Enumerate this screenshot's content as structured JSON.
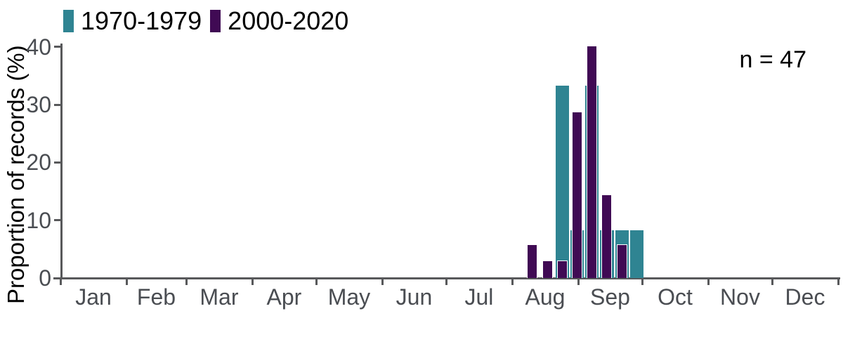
{
  "chart_data": {
    "type": "bar",
    "title": "",
    "ylabel": "Proportion of records (%)",
    "xlabel": "",
    "annotation": "n = 47",
    "ylim": [
      0,
      40
    ],
    "yticks": [
      0,
      10,
      20,
      30,
      40
    ],
    "month_labels": [
      "Jan",
      "Feb",
      "Mar",
      "Apr",
      "May",
      "Jun",
      "Jul",
      "Aug",
      "Sep",
      "Oct",
      "Nov",
      "Dec"
    ],
    "month_start_days": [
      1,
      32,
      60,
      91,
      121,
      152,
      182,
      213,
      244,
      274,
      305,
      335,
      366
    ],
    "bin_width_days": 7,
    "grid": false,
    "legend_position": "top-left",
    "colors": {
      "background": "#FFFFFF",
      "axis": "#58595B",
      "tick_label": "#4A4D52",
      "text": "#000000",
      "series_1970": "#2F8492",
      "series_2000": "#400A54"
    },
    "series": [
      {
        "name": "1970-1979",
        "color": "#2F8492",
        "bar_style": "full",
        "bins": [
          {
            "start_day": 233,
            "start_date": "Aug 21",
            "value": 33.3
          },
          {
            "start_day": 240,
            "start_date": "Aug 28",
            "value": 8.3
          },
          {
            "start_day": 247,
            "start_date": "Sep 4",
            "value": 33.3
          },
          {
            "start_day": 254,
            "start_date": "Sep 11",
            "value": 8.3
          },
          {
            "start_day": 261,
            "start_date": "Sep 18",
            "value": 8.3
          },
          {
            "start_day": 268,
            "start_date": "Sep 25",
            "value": 8.3
          }
        ]
      },
      {
        "name": "2000-2020",
        "color": "#400A54",
        "bar_style": "narrow",
        "bins": [
          {
            "start_day": 219,
            "start_date": "Aug 7",
            "value": 5.7
          },
          {
            "start_day": 226,
            "start_date": "Aug 14",
            "value": 2.9
          },
          {
            "start_day": 233,
            "start_date": "Aug 21",
            "value": 2.9
          },
          {
            "start_day": 240,
            "start_date": "Aug 28",
            "value": 28.6
          },
          {
            "start_day": 247,
            "start_date": "Sep 4",
            "value": 40.0
          },
          {
            "start_day": 254,
            "start_date": "Sep 11",
            "value": 14.3
          },
          {
            "start_day": 261,
            "start_date": "Sep 18",
            "value": 5.7
          }
        ]
      }
    ]
  }
}
